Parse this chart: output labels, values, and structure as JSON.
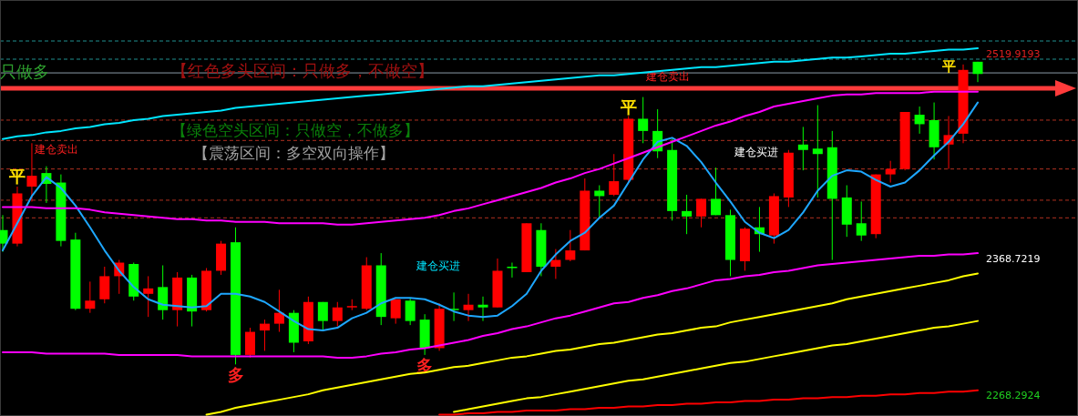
{
  "chart_data": {
    "type": "candlestick",
    "categories": [
      null,
      null,
      null,
      null,
      null,
      null,
      null,
      null,
      null,
      null,
      null,
      null,
      null,
      null,
      null,
      null,
      null,
      null,
      null,
      null,
      null,
      null,
      null,
      null,
      null,
      null,
      null,
      null,
      null,
      null,
      null,
      null,
      null,
      null,
      null,
      null,
      null,
      null,
      null,
      null,
      null,
      null,
      null,
      null,
      null,
      null,
      null,
      null,
      null,
      null,
      null,
      null,
      null,
      null,
      null,
      null,
      null,
      null,
      null,
      null,
      null,
      null,
      null,
      null,
      null,
      null,
      null,
      null
    ],
    "ohlc": [
      [
        2390,
        2401,
        2374,
        2380
      ],
      [
        2380,
        2422,
        2378,
        2417
      ],
      [
        2422,
        2454,
        2411,
        2430
      ],
      [
        2432,
        2437,
        2410,
        2424
      ],
      [
        2425,
        2431,
        2378,
        2382
      ],
      [
        2383,
        2388,
        2331,
        2332
      ],
      [
        2332,
        2352,
        2329,
        2338
      ],
      [
        2339,
        2363,
        2336,
        2356
      ],
      [
        2356,
        2368,
        2343,
        2366
      ],
      [
        2365,
        2366,
        2338,
        2341
      ],
      [
        2343,
        2356,
        2326,
        2347
      ],
      [
        2348,
        2364,
        2324,
        2331
      ],
      [
        2331,
        2359,
        2319,
        2355
      ],
      [
        2355,
        2357,
        2319,
        2330
      ],
      [
        2331,
        2362,
        2330,
        2360
      ],
      [
        2360,
        2382,
        2357,
        2380
      ],
      [
        2381,
        2392,
        2291,
        2298
      ],
      [
        2298,
        2318,
        2296,
        2315
      ],
      [
        2316,
        2324,
        2301,
        2321
      ],
      [
        2321,
        2346,
        2315,
        2329
      ],
      [
        2329,
        2331,
        2300,
        2307
      ],
      [
        2308,
        2341,
        2306,
        2337
      ],
      [
        2337,
        2337,
        2316,
        2323
      ],
      [
        2323,
        2337,
        2319,
        2333
      ],
      [
        2333,
        2339,
        2331,
        2334
      ],
      [
        2332,
        2370,
        2331,
        2364
      ],
      [
        2364,
        2373,
        2320,
        2326
      ],
      [
        2325,
        2339,
        2321,
        2339
      ],
      [
        2338,
        2340,
        2320,
        2323
      ],
      [
        2324,
        2328,
        2298,
        2303
      ],
      [
        2303,
        2336,
        2301,
        2332
      ],
      [
        2332,
        2344,
        2323,
        2331
      ],
      [
        2331,
        2343,
        2323,
        2335
      ],
      [
        2335,
        2341,
        2323,
        2333
      ],
      [
        2333,
        2369,
        2333,
        2360
      ],
      [
        2363,
        2366,
        2355,
        2362
      ],
      [
        2359,
        2395,
        2359,
        2395
      ],
      [
        2390,
        2395,
        2356,
        2363
      ],
      [
        2363,
        2376,
        2354,
        2368
      ],
      [
        2368,
        2390,
        2367,
        2375
      ],
      [
        2375,
        2428,
        2375,
        2419
      ],
      [
        2419,
        2423,
        2399,
        2415
      ],
      [
        2416,
        2446,
        2415,
        2426
      ],
      [
        2427,
        2474,
        2425,
        2472
      ],
      [
        2472,
        2488,
        2454,
        2463
      ],
      [
        2463,
        2479,
        2443,
        2448
      ],
      [
        2449,
        2457,
        2397,
        2404
      ],
      [
        2404,
        2416,
        2387,
        2400
      ],
      [
        2400,
        2413,
        2392,
        2413
      ],
      [
        2413,
        2436,
        2401,
        2401
      ],
      [
        2401,
        2405,
        2356,
        2368
      ],
      [
        2367,
        2392,
        2360,
        2391
      ],
      [
        2392,
        2407,
        2374,
        2387
      ],
      [
        2386,
        2417,
        2380,
        2415
      ],
      [
        2414,
        2449,
        2407,
        2447
      ],
      [
        2453,
        2466,
        2434,
        2449
      ],
      [
        2450,
        2482,
        2414,
        2446
      ],
      [
        2451,
        2463,
        2368,
        2413
      ],
      [
        2414,
        2423,
        2385,
        2394
      ],
      [
        2395,
        2411,
        2382,
        2386
      ],
      [
        2387,
        2431,
        2384,
        2431
      ],
      [
        2431,
        2441,
        2425,
        2435
      ],
      [
        2435,
        2477,
        2434,
        2477
      ],
      [
        2475,
        2481,
        2461,
        2468
      ],
      [
        2471,
        2484,
        2442,
        2451
      ],
      [
        2453,
        2474,
        2435,
        2460
      ],
      [
        2461,
        2512,
        2454,
        2508
      ],
      [
        2514,
        2514,
        2499,
        2505
      ]
    ],
    "colors": [
      "#00ff00",
      "#ff0000",
      "#ff0000",
      "#00ff00",
      "#00ff00",
      "#00ff00",
      "#ff0000",
      "#ff0000",
      "#ff0000",
      "#00ff00",
      "#ff0000",
      "#00ff00",
      "#ff0000",
      "#00ff00",
      "#ff0000",
      "#ff0000",
      "#00ff00",
      "#ff0000",
      "#ff0000",
      "#ff0000",
      "#00ff00",
      "#ff0000",
      "#00ff00",
      "#ff0000",
      "#ff0000",
      "#ff0000",
      "#00ff00",
      "#ff0000",
      "#00ff00",
      "#00ff00",
      "#ff0000",
      "#00ff00",
      "#ff0000",
      "#00ff00",
      "#ff0000",
      "#00ff00",
      "#ff0000",
      "#00ff00",
      "#ff0000",
      "#ff0000",
      "#ff0000",
      "#00ff00",
      "#ff0000",
      "#ff0000",
      "#00ff00",
      "#00ff00",
      "#00ff00",
      "#00ff00",
      "#ff0000",
      "#00ff00",
      "#00ff00",
      "#ff0000",
      "#00ff00",
      "#ff0000",
      "#ff0000",
      "#00ff00",
      "#00ff00",
      "#00ff00",
      "#00ff00",
      "#00ff00",
      "#ff0000",
      "#ff0000",
      "#ff0000",
      "#00ff00",
      "#00ff00",
      "#ff0000",
      "#ff0000",
      "#00ff00"
    ],
    "series": [
      {
        "type": "line",
        "color": "#1ea7ff",
        "values": [
          2375,
          2395,
          2415,
          2429,
          2421,
          2408,
          2392,
          2375,
          2360,
          2348,
          2339,
          2335,
          2334,
          2333,
          2334,
          2343,
          2343,
          2341,
          2337,
          2330,
          2323,
          2317,
          2316,
          2318,
          2325,
          2329,
          2336,
          2340,
          2340,
          2339,
          2335,
          2330,
          2327,
          2326,
          2327,
          2334,
          2343,
          2360,
          2372,
          2382,
          2388,
          2399,
          2408,
          2425,
          2442,
          2455,
          2458,
          2452,
          2440,
          2425,
          2411,
          2396,
          2388,
          2384,
          2390,
          2403,
          2419,
          2430,
          2434,
          2433,
          2427,
          2422,
          2425,
          2434,
          2445,
          2455,
          2468,
          2484
        ]
      },
      {
        "type": "line",
        "color": "#ff00ff",
        "values": [
          2407,
          2407,
          2407,
          2406,
          2406,
          2406,
          2405,
          2403,
          2402,
          2401,
          2400,
          2399,
          2398,
          2398,
          2397,
          2397,
          2396,
          2396,
          2396,
          2395,
          2395,
          2395,
          2395,
          2394,
          2394,
          2395,
          2396,
          2397,
          2398,
          2399,
          2401,
          2404,
          2406,
          2409,
          2412,
          2415,
          2418,
          2421,
          2425,
          2428,
          2432,
          2435,
          2439,
          2443,
          2447,
          2451,
          2455,
          2459,
          2463,
          2467,
          2470,
          2474,
          2477,
          2481,
          2483,
          2485,
          2487,
          2489,
          2490,
          2490,
          2491,
          2491,
          2491,
          2491,
          2492,
          2492,
          2492,
          2492
        ]
      },
      {
        "type": "line",
        "color": "#ff00ff",
        "values": [
          2300,
          2300,
          2300,
          2299,
          2299,
          2299,
          2299,
          2299,
          2298,
          2298,
          2298,
          2298,
          2298,
          2297,
          2297,
          2297,
          2297,
          2297,
          2297,
          2297,
          2297,
          2297,
          2297,
          2296,
          2296,
          2297,
          2299,
          2300,
          2302,
          2303,
          2305,
          2307,
          2309,
          2312,
          2314,
          2317,
          2319,
          2322,
          2325,
          2327,
          2330,
          2333,
          2336,
          2337,
          2340,
          2342,
          2345,
          2347,
          2350,
          2353,
          2354,
          2356,
          2357,
          2359,
          2360,
          2362,
          2364,
          2365,
          2366,
          2367,
          2368,
          2369,
          2370,
          2371,
          2371,
          2372,
          2372,
          2373
        ]
      },
      {
        "type": "line",
        "color": "#00e5ff",
        "values": [
          2457,
          2459,
          2460,
          2462,
          2463,
          2465,
          2466,
          2468,
          2469,
          2471,
          2472,
          2474,
          2475,
          2476,
          2477,
          2478,
          2480,
          2481,
          2482,
          2483,
          2484,
          2485,
          2486,
          2487,
          2488,
          2489,
          2490,
          2491,
          2492,
          2493,
          2494,
          2495,
          2496,
          2496,
          2497,
          2498,
          2499,
          2500,
          2501,
          2502,
          2503,
          2504,
          2504,
          2505,
          2506,
          2507,
          2508,
          2509,
          2510,
          2510,
          2511,
          2512,
          2513,
          2514,
          2514,
          2515,
          2516,
          2517,
          2517,
          2518,
          2519,
          2520,
          2520,
          2521,
          2522,
          2523,
          2523,
          2524
        ]
      },
      {
        "type": "line",
        "color": "#ffff00",
        "values": [
          null,
          null,
          null,
          null,
          null,
          null,
          null,
          null,
          null,
          null,
          null,
          null,
          null,
          null,
          2254,
          2256,
          2259,
          2261,
          2263,
          2265,
          2267,
          2269,
          2272,
          2274,
          2276,
          2278,
          2280,
          2282,
          2284,
          2285,
          2287,
          2289,
          2290,
          2292,
          2294,
          2296,
          2297,
          2299,
          2301,
          2302,
          2304,
          2306,
          2307,
          2309,
          2311,
          2313,
          2314,
          2316,
          2318,
          2319,
          2322,
          2324,
          2326,
          2328,
          2330,
          2332,
          2334,
          2336,
          2339,
          2341,
          2343,
          2345,
          2347,
          2349,
          2351,
          2353,
          2356,
          2358
        ]
      },
      {
        "type": "line",
        "color": "#ffff00",
        "values": [
          null,
          null,
          null,
          null,
          null,
          null,
          null,
          null,
          null,
          null,
          null,
          null,
          null,
          null,
          null,
          null,
          null,
          null,
          null,
          null,
          null,
          null,
          null,
          null,
          null,
          null,
          null,
          null,
          null,
          null,
          null,
          2256,
          2258,
          2260,
          2262,
          2264,
          2266,
          2267,
          2269,
          2271,
          2273,
          2275,
          2277,
          2279,
          2280,
          2282,
          2284,
          2286,
          2288,
          2290,
          2292,
          2293,
          2295,
          2297,
          2299,
          2301,
          2303,
          2305,
          2306,
          2308,
          2310,
          2312,
          2314,
          2316,
          2318,
          2319,
          2321,
          2323
        ]
      },
      {
        "type": "line",
        "color": "#ff0000",
        "values": [
          null,
          null,
          null,
          null,
          null,
          null,
          null,
          null,
          null,
          null,
          null,
          null,
          null,
          null,
          null,
          null,
          null,
          null,
          null,
          null,
          null,
          null,
          null,
          null,
          null,
          null,
          null,
          null,
          null,
          null,
          2254,
          2254,
          2255,
          2255,
          2256,
          2256,
          2257,
          2257,
          2257,
          2258,
          2258,
          2259,
          2259,
          2260,
          2260,
          2261,
          2261,
          2262,
          2262,
          2263,
          2263,
          2264,
          2264,
          2265,
          2265,
          2266,
          2266,
          2267,
          2267,
          2268,
          2268,
          2269,
          2269,
          2270,
          2270,
          2271,
          2271,
          2272
        ]
      }
    ],
    "ylim": [
      2253,
      2559.5
    ],
    "yticks": [
      2519.9193,
      2368.7219,
      2268.2924
    ],
    "ref_lines": [
      {
        "axis": "y",
        "value": 2529.3,
        "color": "#1f8f8f",
        "line_style": "dashed"
      },
      {
        "axis": "y",
        "value": 2515.9,
        "color": "#1f8f8f",
        "line_style": "dashed"
      },
      {
        "axis": "y",
        "value": 2505.8,
        "color": "#8a9aa8",
        "line_style": "solid"
      },
      {
        "axis": "y",
        "value": 2471,
        "color": "#b03020",
        "line_style": "dashed"
      },
      {
        "axis": "y",
        "value": 2456,
        "color": "#b03020",
        "line_style": "dashed"
      },
      {
        "axis": "y",
        "value": 2435,
        "color": "#b03020",
        "line_style": "dashed"
      },
      {
        "axis": "y",
        "value": 2412,
        "color": "#b03020",
        "line_style": "dashed"
      },
      {
        "axis": "y",
        "value": 2399,
        "color": "#b03020",
        "line_style": "dashed"
      },
      {
        "axis": "y",
        "value": 2494.4,
        "color": "#ff3b3b",
        "line_style": "solid"
      }
    ],
    "annotations": [
      "只做多",
      "【红色多头区间：只做多，不做空】",
      "【绿色空头区间：只做空，不做多】",
      "【震荡区间：多空双向操作】",
      "平",
      "平",
      "平",
      "多",
      "多",
      "建仓卖出",
      "建仓卖出",
      "建仓买进",
      "建仓买进"
    ]
  }
}
